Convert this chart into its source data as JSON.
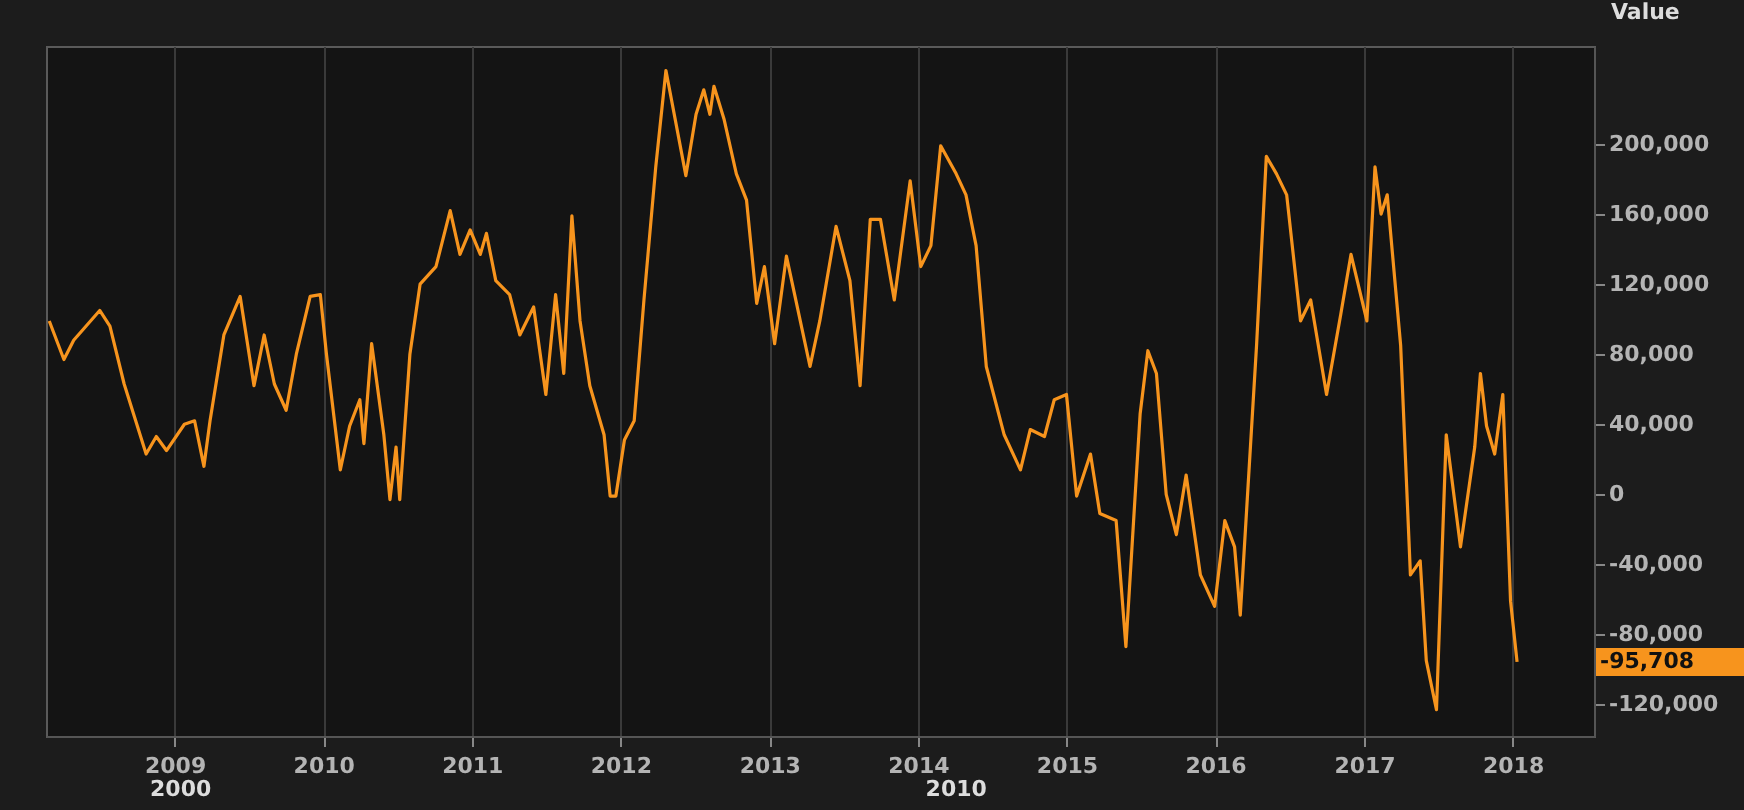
{
  "chart_data": {
    "type": "line",
    "ylabel": "Value",
    "x": [
      "2008-02-28",
      "2008-04-04",
      "2008-04-28",
      "2008-07-01",
      "2008-07-26",
      "2008-08-30",
      "2008-10-23",
      "2008-11-17",
      "2008-12-12",
      "2009-01-25",
      "2009-02-19",
      "2009-03-14",
      "2009-03-29",
      "2009-05-02",
      "2009-06-11",
      "2009-07-15",
      "2009-08-09",
      "2009-09-03",
      "2009-10-02",
      "2009-10-27",
      "2009-11-30",
      "2009-12-25",
      "2010-01-09",
      "2010-02-12",
      "2010-03-07",
      "2010-04-01",
      "2010-04-11",
      "2010-04-30",
      "2010-05-30",
      "2010-06-14",
      "2010-06-29",
      "2010-07-08",
      "2010-08-02",
      "2010-08-27",
      "2010-10-05",
      "2010-11-09",
      "2010-12-03",
      "2010-12-28",
      "2011-01-22",
      "2011-02-06",
      "2011-03-01",
      "2011-04-04",
      "2011-04-29",
      "2011-06-02",
      "2011-07-02",
      "2011-07-26",
      "2011-08-15",
      "2011-09-04",
      "2011-09-24",
      "2011-10-18",
      "2011-11-22",
      "2011-12-07",
      "2011-12-21",
      "2012-01-11",
      "2012-02-04",
      "2012-02-28",
      "2012-03-28",
      "2012-04-22",
      "2012-06-10",
      "2012-07-05",
      "2012-07-24",
      "2012-08-08",
      "2012-08-18",
      "2012-09-12",
      "2012-10-12",
      "2012-11-06",
      "2012-12-01",
      "2012-12-20",
      "2013-01-14",
      "2013-02-12",
      "2013-03-07",
      "2013-04-11",
      "2013-05-05",
      "2013-06-14",
      "2013-07-18",
      "2013-08-12",
      "2013-09-06",
      "2013-10-01",
      "2013-11-04",
      "2013-12-13",
      "2014-01-08",
      "2014-02-02",
      "2014-02-26",
      "2014-04-05",
      "2014-04-29",
      "2014-05-24",
      "2014-06-18",
      "2014-08-01",
      "2014-09-10",
      "2014-10-04",
      "2014-11-08",
      "2014-12-02",
      "2015-01-01",
      "2015-01-26",
      "2015-03-01",
      "2015-03-24",
      "2015-05-03",
      "2015-05-27",
      "2015-07-01",
      "2015-07-20",
      "2015-08-10",
      "2015-09-03",
      "2015-09-28",
      "2015-10-22",
      "2015-11-26",
      "2015-12-31",
      "2016-01-25",
      "2016-02-18",
      "2016-03-03",
      "2016-04-12",
      "2016-05-06",
      "2016-05-31",
      "2016-06-25",
      "2016-07-29",
      "2016-08-23",
      "2016-10-01",
      "2016-11-05",
      "2016-11-30",
      "2017-01-08",
      "2017-01-28",
      "2017-02-12",
      "2017-02-27",
      "2017-04-01",
      "2017-04-25",
      "2017-05-19",
      "2017-06-03",
      "2017-06-28",
      "2017-07-22",
      "2017-08-26",
      "2017-09-30",
      "2017-10-14",
      "2017-10-29",
      "2017-11-18",
      "2017-12-08",
      "2017-12-27",
      "2018-01-12"
    ],
    "series": [
      {
        "color": "#f7941d",
        "values": [
          99000,
          77000,
          88000,
          105000,
          96000,
          63000,
          23000,
          33000,
          25000,
          40000,
          42000,
          16000,
          42000,
          91000,
          113000,
          62000,
          91000,
          63000,
          48000,
          80000,
          113000,
          114000,
          80000,
          14000,
          39000,
          54000,
          29000,
          86000,
          34000,
          -3000,
          27000,
          -3000,
          80000,
          120000,
          130000,
          162000,
          137000,
          151000,
          137000,
          149000,
          122000,
          114000,
          91000,
          107000,
          57000,
          114000,
          69000,
          159000,
          99000,
          62000,
          34000,
          -1000,
          -1000,
          31000,
          42000,
          111000,
          187000,
          242000,
          182000,
          217000,
          231000,
          217000,
          233000,
          214000,
          183000,
          168000,
          109000,
          130000,
          86000,
          136000,
          111000,
          73000,
          99000,
          153000,
          122000,
          62000,
          157000,
          157000,
          111000,
          179000,
          130000,
          142000,
          199000,
          183000,
          171000,
          142000,
          73000,
          34000,
          14000,
          37000,
          33000,
          54000,
          57000,
          -1000,
          23000,
          -11000,
          -15000,
          -87000,
          46000,
          82000,
          69000,
          0,
          -23000,
          11000,
          -46000,
          -64000,
          -15000,
          -30000,
          -69000,
          85000,
          193000,
          183000,
          171000,
          99000,
          111000,
          57000,
          103000,
          137000,
          99000,
          187000,
          160000,
          171000,
          85000,
          -46000,
          -38000,
          -95000,
          -123000,
          34000,
          -30000,
          27000,
          69000,
          39000,
          23000,
          57000,
          -61000,
          -95708
        ]
      }
    ],
    "xlim": [
      "2008-02-20",
      "2018-07-20"
    ],
    "xticks": [
      {
        "value": "2009",
        "label": "2009"
      },
      {
        "value": "2010",
        "label": "2010"
      },
      {
        "value": "2011",
        "label": "2011"
      },
      {
        "value": "2012",
        "label": "2012"
      },
      {
        "value": "2013",
        "label": "2013"
      },
      {
        "value": "2014",
        "label": "2014"
      },
      {
        "value": "2015",
        "label": "2015"
      },
      {
        "value": "2016",
        "label": "2016"
      },
      {
        "value": "2017",
        "label": "2017"
      },
      {
        "value": "2018",
        "label": "2018"
      }
    ],
    "ylim": [
      -138000,
      256000
    ],
    "yticks": [
      {
        "value": -120000,
        "label": "-120,000"
      },
      {
        "value": -80000,
        "label": "-80,000"
      },
      {
        "value": -40000,
        "label": "-40,000"
      },
      {
        "value": 0,
        "label": "0"
      },
      {
        "value": 40000,
        "label": "40,000"
      },
      {
        "value": 80000,
        "label": "80,000"
      },
      {
        "value": 120000,
        "label": "120,000"
      },
      {
        "value": 160000,
        "label": "160,000"
      },
      {
        "value": 200000,
        "label": "200,000"
      }
    ],
    "grid": "x",
    "marker": "none",
    "line_style": "solid",
    "annotations": [
      "2000",
      "2010",
      "-95,708"
    ]
  }
}
